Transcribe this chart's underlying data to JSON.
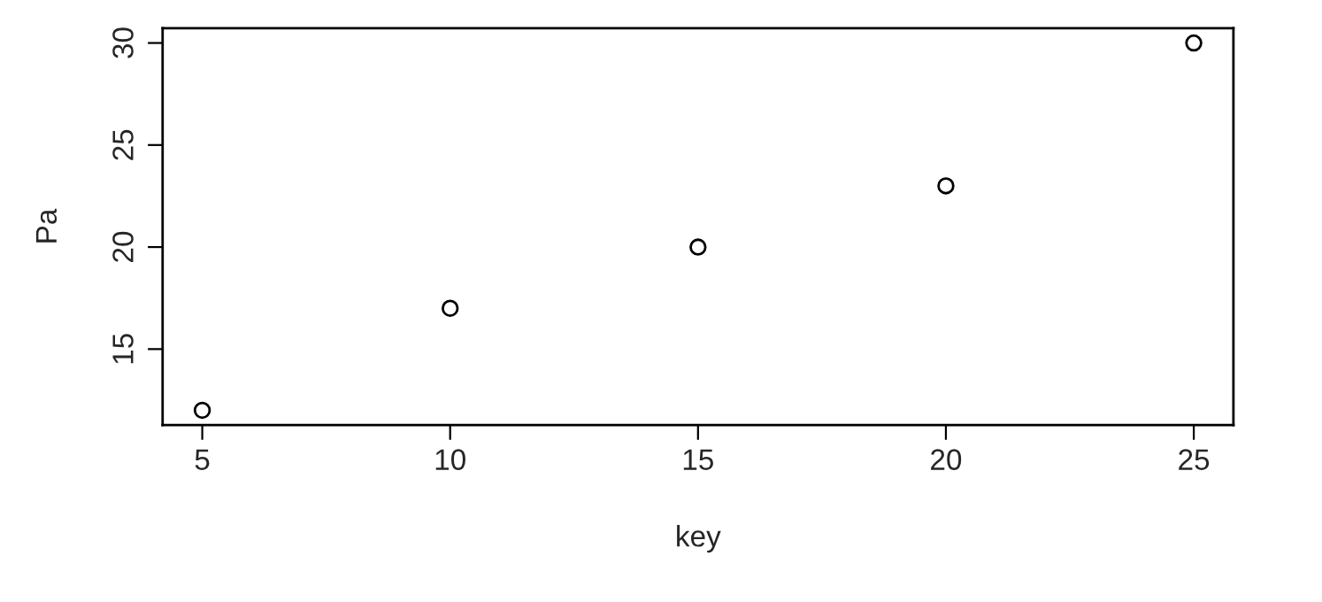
{
  "chart_data": {
    "type": "scatter",
    "xlabel": "key",
    "ylabel": "Pa",
    "x": [
      5,
      10,
      15,
      20,
      25
    ],
    "series": [
      {
        "color": "#000000",
        "values": [
          12,
          17,
          20,
          23,
          30
        ]
      }
    ],
    "xlim": [
      4.2,
      25.8
    ],
    "ylim": [
      11.28,
      30.72
    ],
    "xticks": [
      5,
      10,
      15,
      20,
      25
    ],
    "yticks": [
      15,
      20,
      25,
      30
    ],
    "marker": "circle",
    "grid": false,
    "legend": false
  }
}
